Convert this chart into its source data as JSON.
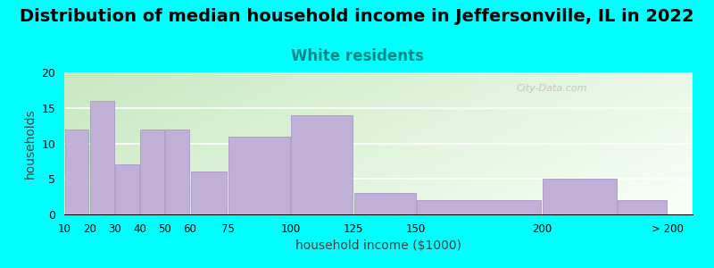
{
  "title": "Distribution of median household income in Jeffersonville, IL in 2022",
  "subtitle": "White residents",
  "xlabel": "household income ($1000)",
  "ylabel": "households",
  "background_color": "#00FFFF",
  "bar_color": "#c0b0d8",
  "bar_edge_color": "#a898c8",
  "bar_left_edges": [
    10,
    20,
    30,
    40,
    50,
    60,
    75,
    100,
    125,
    150,
    200,
    230
  ],
  "bar_widths": [
    10,
    10,
    10,
    10,
    10,
    15,
    25,
    25,
    25,
    50,
    30,
    20
  ],
  "values": [
    12,
    16,
    7,
    12,
    12,
    6,
    11,
    14,
    3,
    2,
    5,
    2
  ],
  "xtick_positions": [
    10,
    20,
    30,
    40,
    50,
    60,
    75,
    100,
    125,
    150,
    200,
    250
  ],
  "xtick_labels": [
    "10",
    "20",
    "30",
    "40",
    "50",
    "60",
    "75",
    "100",
    "125",
    "150",
    "200",
    "> 200"
  ],
  "xlim": [
    10,
    260
  ],
  "ylim": [
    0,
    20
  ],
  "yticks": [
    0,
    5,
    10,
    15,
    20
  ],
  "title_fontsize": 14,
  "subtitle_fontsize": 12,
  "subtitle_color": "#008888",
  "watermark": "City-Data.com",
  "grid_color": "#ffffff"
}
